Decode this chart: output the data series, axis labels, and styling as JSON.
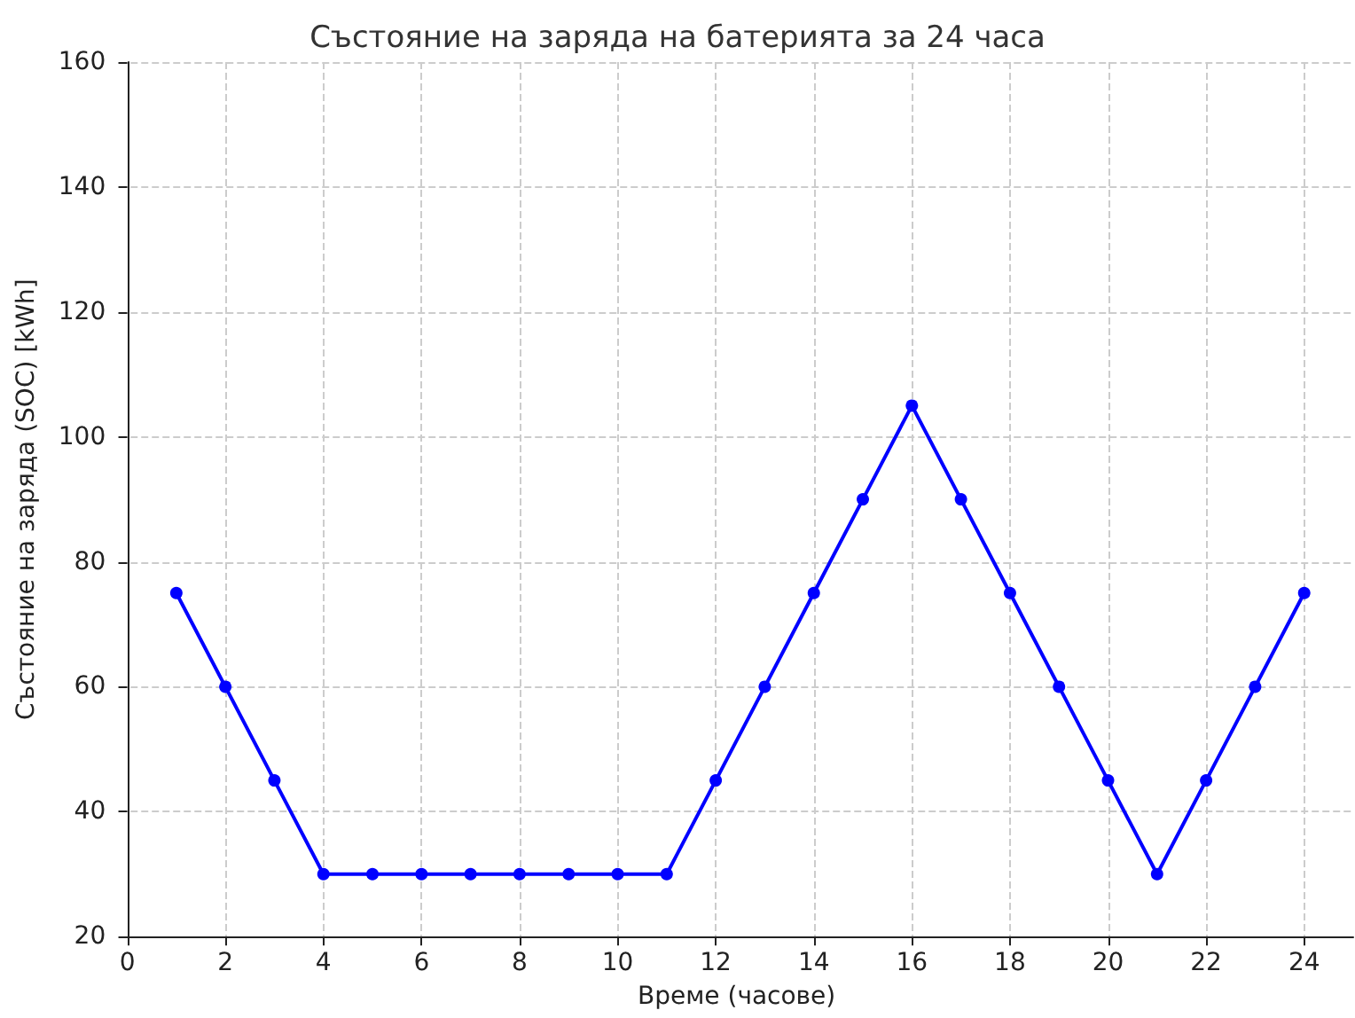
{
  "chart_data": {
    "type": "line",
    "title": "Състояние на заряда на батерията за 24 часа",
    "xlabel": "Време (часове)",
    "ylabel": "Състояние на заряда (SOC) [kWh]",
    "x": [
      1,
      2,
      3,
      4,
      5,
      6,
      7,
      8,
      9,
      10,
      11,
      12,
      13,
      14,
      15,
      16,
      17,
      18,
      19,
      20,
      21,
      22,
      23,
      24
    ],
    "series": [
      {
        "color": "#0000ff",
        "values": [
          75,
          60,
          45,
          30,
          30,
          30,
          30,
          30,
          30,
          30,
          30,
          45,
          60,
          75,
          90,
          105,
          90,
          75,
          60,
          45,
          30,
          45,
          60,
          75
        ]
      }
    ],
    "xlim": [
      -0.15,
      25
    ],
    "xticks": [
      0,
      2,
      4,
      6,
      8,
      10,
      12,
      14,
      16,
      18,
      20,
      22,
      24
    ],
    "ylim": [
      20,
      160
    ],
    "yticks": [
      20,
      40,
      60,
      80,
      100,
      120,
      140,
      160
    ],
    "grid": true,
    "marker": "circle",
    "line_style": "solid"
  }
}
